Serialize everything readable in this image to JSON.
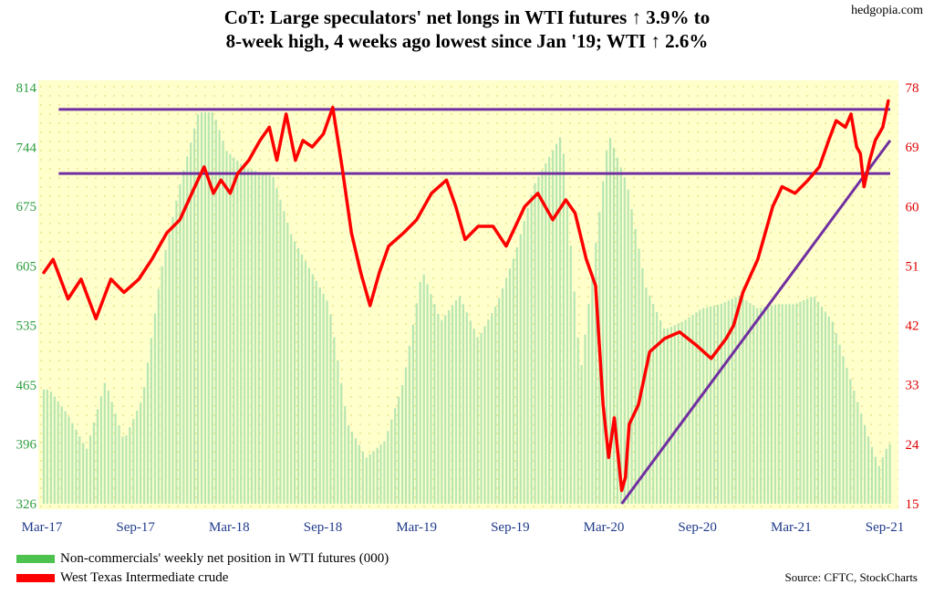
{
  "title_line1": "CoT: Large speculators' net longs in WTI futures ↑ 3.9% to",
  "title_line2": "8-week high, 4 weeks ago lowest since Jan '19; WTI ↑ 2.6%",
  "site": "hedgopia.com",
  "source": "Source: CFTC, StockCharts",
  "colors": {
    "bars": "#b7e6b3",
    "line": "#ff0000",
    "trend": "#7030a0",
    "plot_bg": "#ffffcc",
    "left_axis": "#2e9e3e",
    "right_axis": "#e00000",
    "legend_green": "#4ec24e"
  },
  "legend": [
    {
      "label": "Non-commercials' weekly net position in WTI futures (000)",
      "color": "#4ec24e"
    },
    {
      "label": "West Texas Intermediate crude",
      "color": "#ff0000"
    }
  ],
  "chart_data": {
    "type": "bar+line",
    "x_ticks": [
      "Mar-17",
      "Sep-17",
      "Mar-18",
      "Sep-18",
      "Mar-19",
      "Sep-19",
      "Mar-20",
      "Sep-20",
      "Mar-21",
      "Sep-21"
    ],
    "left_axis": {
      "ticks": [
        326,
        396,
        465,
        535,
        605,
        675,
        744,
        814
      ],
      "ylim": [
        326,
        814
      ],
      "color": "#2e9e3e"
    },
    "right_axis": {
      "ticks": [
        15,
        24,
        33,
        42,
        51,
        60,
        69,
        78
      ],
      "ylim": [
        15,
        78
      ],
      "color": "#e00000"
    },
    "grid": false,
    "series": [
      {
        "name": "Non-commercials' weekly net position in WTI futures (000)",
        "kind": "bar",
        "axis": "left",
        "x": [
          2017.2,
          2017.3,
          2017.4,
          2017.5,
          2017.6,
          2017.7,
          2017.8,
          2017.9,
          2018.0,
          2018.08,
          2018.15,
          2018.25,
          2018.4,
          2018.5,
          2018.6,
          2018.7,
          2018.8,
          2018.9,
          2019.0,
          2019.1,
          2019.2,
          2019.3,
          2019.4,
          2019.5,
          2019.6,
          2019.7,
          2019.8,
          2019.95,
          2020.05,
          2020.2,
          2020.3,
          2020.4,
          2020.5,
          2020.6,
          2020.7,
          2020.8,
          2020.9,
          2021.0,
          2021.1,
          2021.2,
          2021.3,
          2021.4,
          2021.5,
          2021.6,
          2021.65,
          2021.7
        ],
        "values": [
          460,
          430,
          390,
          470,
          400,
          450,
          600,
          700,
          785,
          785,
          740,
          720,
          710,
          640,
          600,
          560,
          420,
          380,
          400,
          470,
          600,
          540,
          570,
          520,
          560,
          620,
          700,
          760,
          480,
          760,
          700,
          580,
          530,
          540,
          555,
          560,
          570,
          555,
          560,
          560,
          570,
          540,
          470,
          400,
          370,
          396
        ]
      },
      {
        "name": "West Texas Intermediate crude",
        "kind": "line",
        "axis": "right",
        "x": [
          2017.17,
          2017.22,
          2017.3,
          2017.37,
          2017.45,
          2017.53,
          2017.6,
          2017.68,
          2017.75,
          2017.83,
          2017.9,
          2017.98,
          2018.03,
          2018.08,
          2018.12,
          2018.17,
          2018.21,
          2018.27,
          2018.33,
          2018.38,
          2018.42,
          2018.47,
          2018.52,
          2018.56,
          2018.61,
          2018.67,
          2018.72,
          2018.77,
          2018.82,
          2018.87,
          2018.92,
          2018.97,
          2019.02,
          2019.1,
          2019.17,
          2019.25,
          2019.33,
          2019.38,
          2019.43,
          2019.5,
          2019.58,
          2019.65,
          2019.7,
          2019.75,
          2019.82,
          2019.9,
          2019.97,
          2020.02,
          2020.08,
          2020.13,
          2020.17,
          2020.2,
          2020.23,
          2020.27,
          2020.29,
          2020.31,
          2020.36,
          2020.42,
          2020.5,
          2020.58,
          2020.67,
          2020.75,
          2020.83,
          2020.87,
          2020.92,
          2021.0,
          2021.08,
          2021.13,
          2021.2,
          2021.27,
          2021.33,
          2021.38,
          2021.42,
          2021.47,
          2021.5,
          2021.53,
          2021.55,
          2021.57,
          2021.6,
          2021.63,
          2021.67,
          2021.7
        ],
        "values": [
          50,
          52,
          46,
          49,
          43,
          49,
          47,
          49,
          52,
          56,
          58,
          63,
          66,
          62,
          64,
          62,
          65,
          67,
          70,
          72,
          67,
          74,
          67,
          70,
          69,
          71,
          75,
          66,
          56,
          50,
          45,
          50,
          54,
          56,
          58,
          62,
          64,
          60,
          55,
          57,
          57,
          54,
          57,
          60,
          62,
          58,
          61,
          59,
          52,
          48,
          30,
          22,
          28,
          17,
          19,
          27,
          30,
          38,
          40,
          41,
          39,
          37,
          40,
          42,
          47,
          52,
          60,
          63,
          62,
          64,
          66,
          70,
          73,
          72,
          74,
          69,
          68,
          63,
          67,
          70,
          72,
          76
        ]
      },
      {
        "name": "",
        "kind": "trendline",
        "axis": "right",
        "x": [
          2020.27,
          2021.71
        ],
        "values": [
          15,
          70
        ]
      }
    ],
    "horizontal_lines": [
      {
        "axis": "right",
        "value": 74.7,
        "x_range": [
          2017.25,
          2021.71
        ]
      },
      {
        "axis": "right",
        "value": 65.0,
        "x_range": [
          2017.25,
          2021.71
        ]
      }
    ]
  }
}
